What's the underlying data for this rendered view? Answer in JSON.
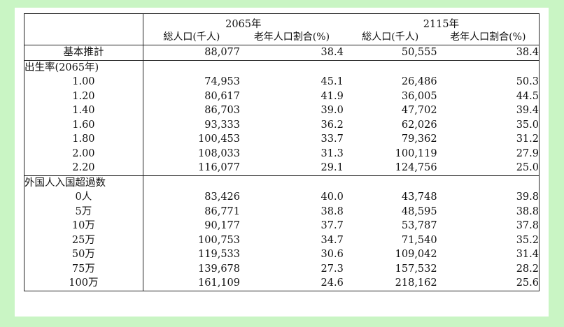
{
  "header": {
    "group_2065": "2065年",
    "group_2115": "2115年",
    "col_total_2065": "総人口(千人)",
    "col_ratio_2065": "老年人口割合(%)",
    "col_total_2115": "総人口(千人)",
    "col_ratio_2115": "老年人口割合(%)"
  },
  "base": {
    "label": "基本推計",
    "values": [
      "88,077",
      "38.4",
      "50,555",
      "38.4"
    ]
  },
  "fertility": {
    "title": "出生率(2065年)",
    "rows": [
      {
        "label": "1.00",
        "values": [
          "74,953",
          "45.1",
          "26,486",
          "50.3"
        ]
      },
      {
        "label": "1.20",
        "values": [
          "80,617",
          "41.9",
          "36,005",
          "44.5"
        ]
      },
      {
        "label": "1.40",
        "values": [
          "86,703",
          "39.0",
          "47,702",
          "39.4"
        ]
      },
      {
        "label": "1.60",
        "values": [
          "93,333",
          "36.2",
          "62,026",
          "35.0"
        ]
      },
      {
        "label": "1.80",
        "values": [
          "100,453",
          "33.7",
          "79,362",
          "31.2"
        ]
      },
      {
        "label": "2.00",
        "values": [
          "108,033",
          "31.3",
          "100,119",
          "27.9"
        ]
      },
      {
        "label": "2.20",
        "values": [
          "116,077",
          "29.1",
          "124,756",
          "25.0"
        ]
      }
    ]
  },
  "immigration": {
    "title": "外国人入国超過数",
    "rows": [
      {
        "label": "0人",
        "values": [
          "83,426",
          "40.0",
          "43,748",
          "39.8"
        ]
      },
      {
        "label": "5万",
        "values": [
          "86,771",
          "38.8",
          "48,595",
          "38.8"
        ]
      },
      {
        "label": "10万",
        "values": [
          "90,177",
          "37.7",
          "53,787",
          "37.8"
        ]
      },
      {
        "label": "25万",
        "values": [
          "100,753",
          "34.7",
          "71,540",
          "35.2"
        ]
      },
      {
        "label": "50万",
        "values": [
          "119,533",
          "30.6",
          "109,042",
          "31.4"
        ]
      },
      {
        "label": "75万",
        "values": [
          "139,678",
          "27.3",
          "157,532",
          "28.2"
        ]
      },
      {
        "label": "100万",
        "values": [
          "161,109",
          "24.6",
          "218,162",
          "25.6"
        ]
      }
    ]
  }
}
